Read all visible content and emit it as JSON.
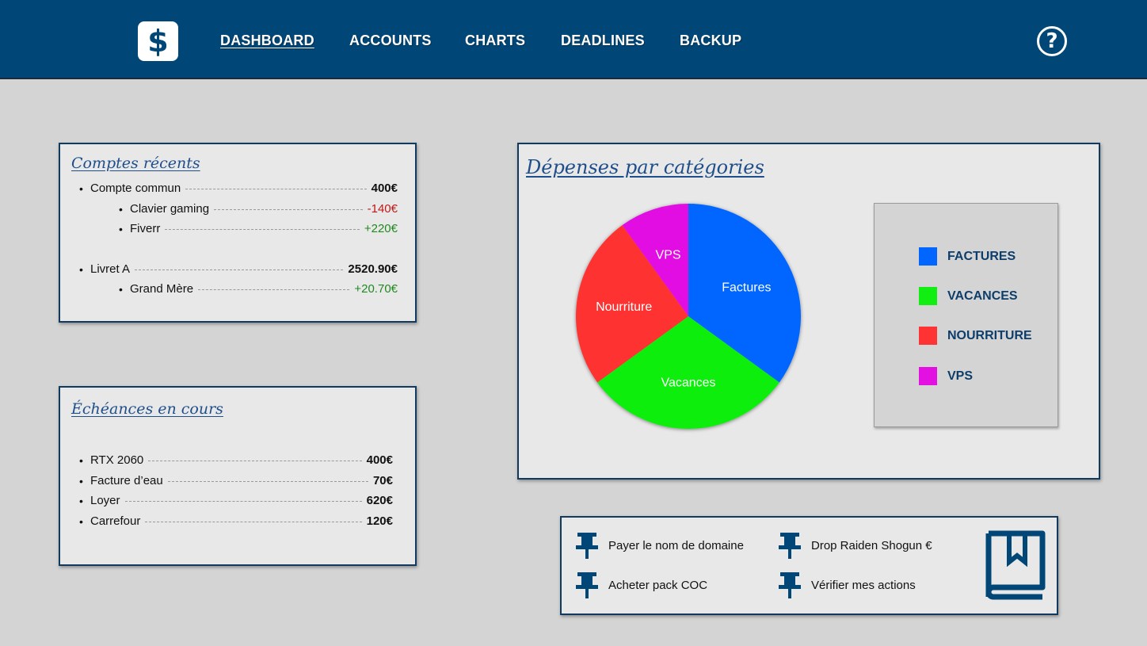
{
  "nav": {
    "logo_symbol": "$",
    "items": [
      {
        "label": "DASHBOARD",
        "active": true
      },
      {
        "label": "ACCOUNTS",
        "active": false
      },
      {
        "label": "CHARTS",
        "active": false
      },
      {
        "label": "DEADLINES",
        "active": false
      },
      {
        "label": "BACKUP",
        "active": false
      }
    ],
    "help_symbol": "?"
  },
  "recent_accounts": {
    "title": "Comptes récents",
    "rows": [
      {
        "label": "Compte commun",
        "amount": "400€"
      },
      {
        "label": "Clavier gaming",
        "amount": "-140€"
      },
      {
        "label": "Fiverr",
        "amount": "+220€"
      },
      {
        "label": "Livret A",
        "amount": "2520.90€"
      },
      {
        "label": "Grand Mère",
        "amount": "+20.70€"
      }
    ]
  },
  "deadlines": {
    "title": "Échéances en cours",
    "rows": [
      {
        "label": "RTX 2060",
        "amount": "400€"
      },
      {
        "label": "Facture d’eau",
        "amount": "70€"
      },
      {
        "label": "Loyer",
        "amount": "620€"
      },
      {
        "label": "Carrefour",
        "amount": "120€"
      }
    ]
  },
  "expenses": {
    "title": "Dépenses par catégories",
    "legend": [
      {
        "label": "FACTURES",
        "color": "#0066ff"
      },
      {
        "label": "VACANCES",
        "color": "#11ee11"
      },
      {
        "label": "NOURRITURE",
        "color": "#ff3333"
      },
      {
        "label": "VPS",
        "color": "#e211e2"
      }
    ]
  },
  "chart_data": {
    "type": "pie",
    "title": "Dépenses par catégories",
    "categories": [
      "Factures",
      "Vacances",
      "Nourriture",
      "VPS"
    ],
    "values": [
      35,
      30,
      25,
      10
    ],
    "colors": [
      "#0066ff",
      "#11ee11",
      "#ff3333",
      "#e211e2"
    ]
  },
  "todos": [
    {
      "label": "Payer le nom de domaine"
    },
    {
      "label": "Drop Raiden Shogun €"
    },
    {
      "label": "Acheter pack COC"
    },
    {
      "label": "Vérifier mes actions"
    }
  ],
  "icons": {
    "logo": "dollar-icon",
    "help": "help-icon",
    "pin": "pin-icon",
    "book": "bookmark-book-icon"
  },
  "colors": {
    "topbar": "#004778",
    "accent_text": "#0d3d6b",
    "negative": "#c01818",
    "positive": "#1f8a1f"
  }
}
